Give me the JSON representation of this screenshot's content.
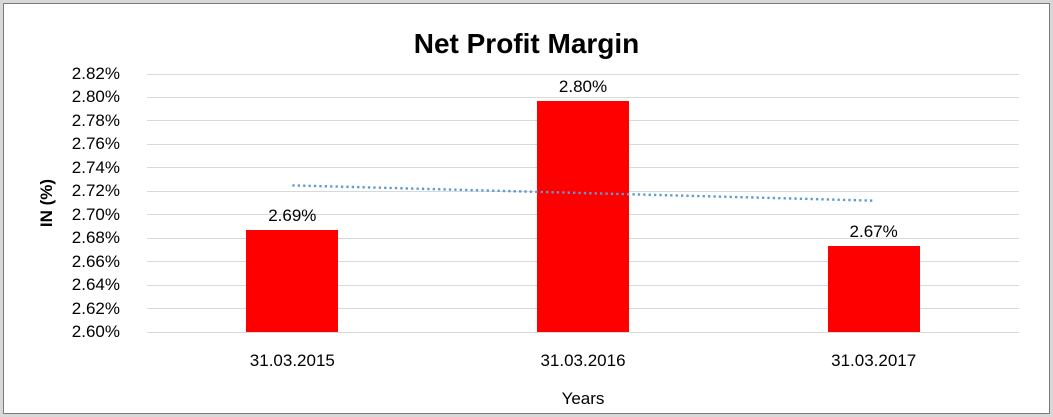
{
  "chart_data": {
    "type": "bar",
    "title": "Net Profit Margin",
    "xlabel": "Years",
    "ylabel": "IN (%)",
    "categories": [
      "31.03.2015",
      "31.03.2016",
      "31.03.2017"
    ],
    "values": [
      2.687,
      2.797,
      2.673
    ],
    "data_labels": [
      "2.69%",
      "2.80%",
      "2.67%"
    ],
    "ylim": [
      2.6,
      2.82
    ],
    "ytick_step": 0.02,
    "ytick_labels": [
      "2.82%",
      "2.80%",
      "2.78%",
      "2.76%",
      "2.74%",
      "2.72%",
      "2.70%",
      "2.68%",
      "2.66%",
      "2.64%",
      "2.62%",
      "2.60%"
    ],
    "grid": true,
    "legend": "none",
    "bar_color": "#FF0000",
    "gridline_color": "#D9D9D9",
    "trendline": {
      "type": "linear",
      "start_value": 2.725,
      "end_value": 2.712,
      "color": "#5B9BD5",
      "style": "dotted"
    }
  }
}
